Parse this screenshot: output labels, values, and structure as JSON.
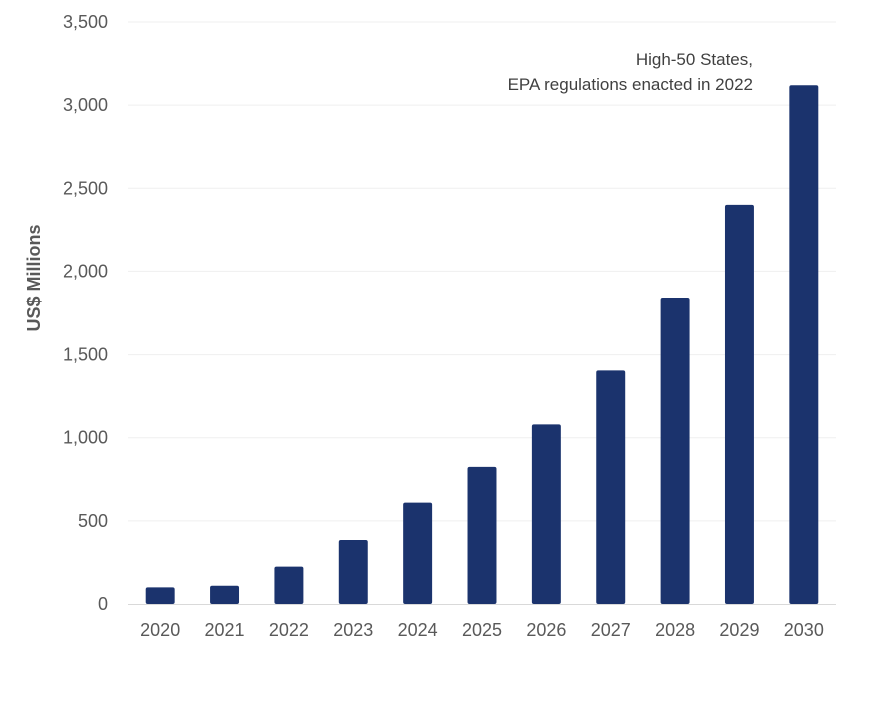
{
  "chart_data": {
    "type": "bar",
    "categories": [
      "2020",
      "2021",
      "2022",
      "2023",
      "2024",
      "2025",
      "2026",
      "2027",
      "2028",
      "2029",
      "2030"
    ],
    "values": [
      100,
      110,
      225,
      385,
      610,
      825,
      1080,
      1405,
      1840,
      2400,
      3120
    ],
    "title": "",
    "xlabel": "",
    "ylabel": "US$ Millions",
    "ylim": [
      0,
      3500
    ],
    "yticks": [
      0,
      500,
      1000,
      1500,
      2000,
      2500,
      3000,
      3500
    ],
    "ytick_labels": [
      "0",
      "500",
      "1,000",
      "1,500",
      "2,000",
      "2,500",
      "3,000",
      "3,500"
    ],
    "annotation": [
      "High-50 States,",
      "EPA regulations enacted in 2022"
    ],
    "bar_color": "#1b336d",
    "grid": true,
    "legend": "none"
  }
}
